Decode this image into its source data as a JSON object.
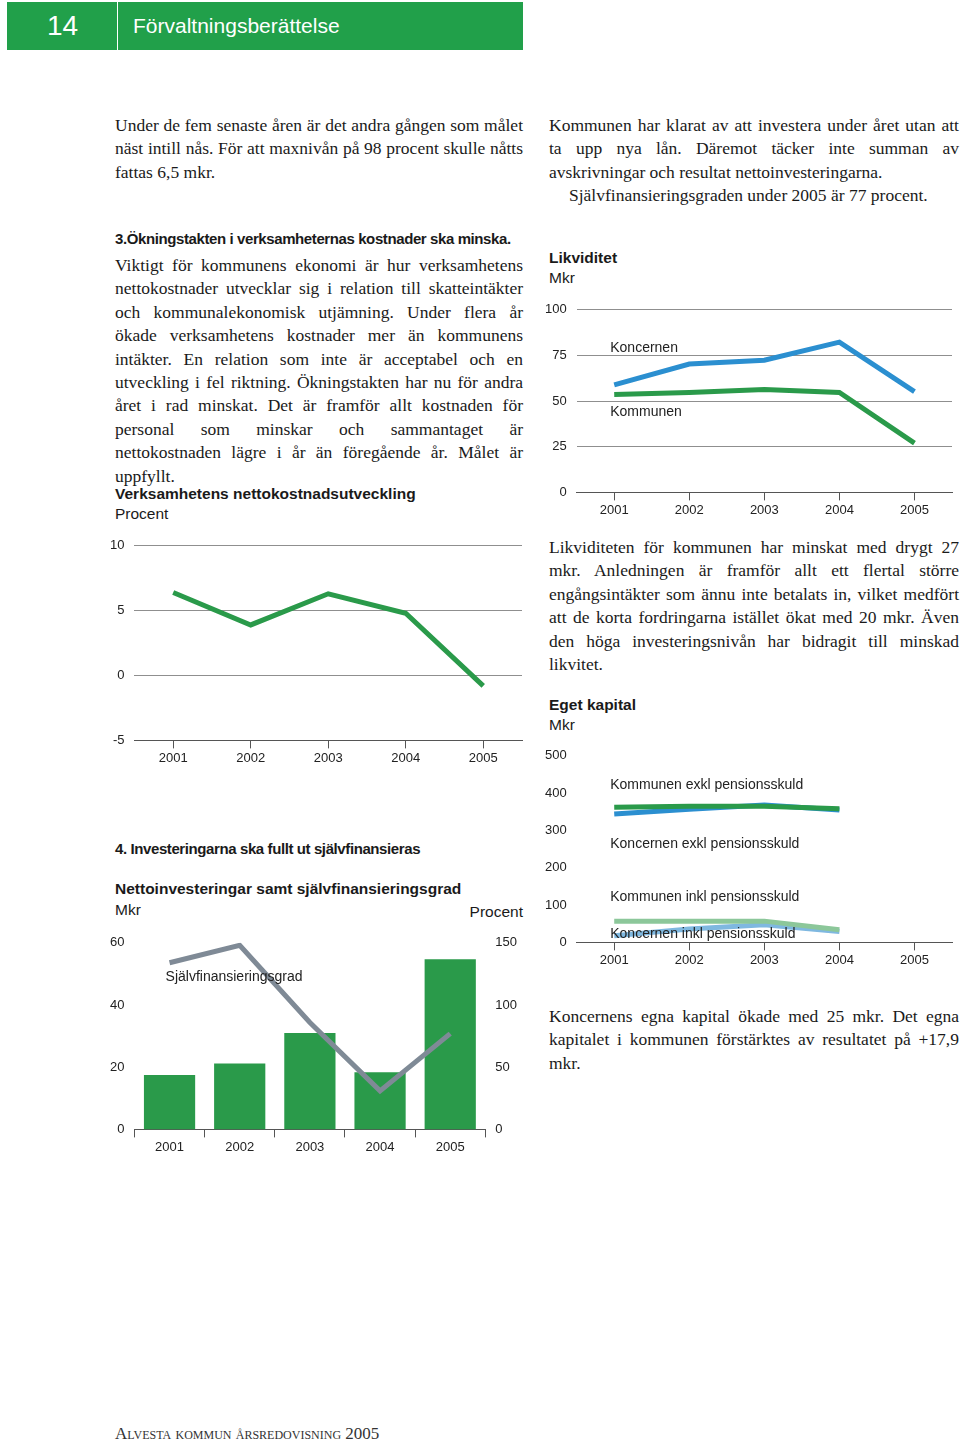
{
  "header": {
    "page": "14",
    "title": "Förvaltningsberättelse"
  },
  "left_column": {
    "paragraph_1": "Under de fem senaste åren är det andra gången som målet näst intill nås. För att maxnivån på 98 procent skulle nåtts fattas 6,5 mkr.",
    "heading_3": "3.Ökningstakten i verksamheternas kostnader ska minska.",
    "paragraph_2": "Viktigt för kommunens ekonomi är hur verksamhetens nettokostnader utvecklar sig i relation till skatteintäkter och kommunalekonomisk utjämning. Under flera år ökade verksamhetens kostnader mer än kommunens intäkter. En relation som inte är acceptabel och en utveckling i fel riktning. Ökningstakten har nu för andra året i rad minskat. Det är framför allt kostnaden för personal som minskar och sammantaget är nettokostnaden lägre i år än föregående år. Målet är uppfyllt.",
    "heading_4": "4. Investeringarna ska fullt ut självfinansieras"
  },
  "right_column": {
    "paragraph_1": "Kommunen har klarat av att investera under året utan att ta upp nya lån. Däremot täcker inte summan av avskrivningar och resultat nettoinvesteringarna.",
    "paragraph_2": "Självfinansieringsgraden under 2005 är 77 procent.",
    "paragraph_3": "Likviditeten för kommunen har minskat med drygt 27 mkr. Anledningen är framför allt ett flertal större engångsintäkter som ännu inte betalats in, vilket medfört att de korta fordringarna istället ökat med 20 mkr. Även den höga investeringsnivån har bidragit till minskad likvitet.",
    "paragraph_4": "Koncernens egna kapital ökade med 25 mkr. Det egna kapitalet i kommunen förstärktes av resultatet på +17,9 mkr."
  },
  "footer": "Alvesta kommun årsredovisning 2005",
  "chart_data": [
    {
      "type": "line",
      "title": "Verksamhetens nettokostnadsutveckling",
      "y_label": "Procent",
      "categories": [
        "2001",
        "2002",
        "2003",
        "2004",
        "2005"
      ],
      "values": [
        6.4,
        3.9,
        6.3,
        4.8,
        -0.8
      ],
      "color": "#2a9a4a",
      "ylim": [
        -5,
        10
      ],
      "yticks": [
        -5,
        0,
        5,
        10
      ],
      "grid": true
    },
    {
      "type": "bar",
      "title": "Nettoinvesteringar samt självfinansieringsgrad",
      "y_label": "Mkr",
      "y2_label": "Procent",
      "categories": [
        "2001",
        "2002",
        "2003",
        "2004",
        "2005"
      ],
      "series": [
        {
          "type": "bar",
          "color": "#2a9a4a",
          "values": [
            17.5,
            21.2,
            31,
            18.4,
            54.7
          ]
        },
        {
          "name": "Självfinansieringsgrad",
          "type": "line",
          "axis": "y2",
          "color": "#7f8a96",
          "values": [
            134,
            148,
            86,
            31,
            77
          ]
        }
      ],
      "ylim": [
        0,
        60
      ],
      "yticks": [
        0,
        20,
        40,
        60
      ],
      "y2lim": [
        0,
        150
      ],
      "y2ticks": [
        0,
        50,
        100,
        150
      ],
      "grid": false
    },
    {
      "type": "line",
      "title": "Likviditet",
      "y_label": "Mkr",
      "categories": [
        "2001",
        "2002",
        "2003",
        "2004",
        "2005"
      ],
      "series": [
        {
          "name": "Koncernen",
          "color": "#2b8fd0",
          "values": [
            58.9,
            70.3,
            72.4,
            82.3,
            55.2
          ]
        },
        {
          "name": "Kommunen",
          "color": "#2a9a4a",
          "values": [
            53.6,
            54.7,
            56.3,
            54.7,
            27
          ]
        }
      ],
      "ylim": [
        0,
        100
      ],
      "yticks": [
        0,
        25,
        50,
        75,
        100
      ],
      "grid": true
    },
    {
      "type": "line",
      "title": "Eget kapital",
      "y_label": "Mkr",
      "categories": [
        "2001",
        "2002",
        "2003",
        "2004",
        "2005"
      ],
      "series": [
        {
          "name": "Kommunen exkl pensionsskuld",
          "color": "#2a9a4a",
          "values": [
            362,
            365,
            365,
            358,
            null
          ]
        },
        {
          "name": "Koncernen exkl pensionsskuld",
          "color": "#2b8fd0",
          "values": [
            344,
            357,
            368,
            355,
            null
          ]
        },
        {
          "name": "Kommunen inkl pensionsskuld",
          "color": "#8cc79a",
          "values": [
            57,
            57,
            57,
            34,
            null
          ]
        },
        {
          "name": "Koncernen inkl pensionsskuld",
          "color": "#7fb8e0",
          "values": [
            18,
            36,
            47,
            29,
            null
          ]
        }
      ],
      "ylim": [
        0,
        500
      ],
      "yticks": [
        0,
        100,
        200,
        300,
        400,
        500
      ],
      "grid": false
    }
  ]
}
